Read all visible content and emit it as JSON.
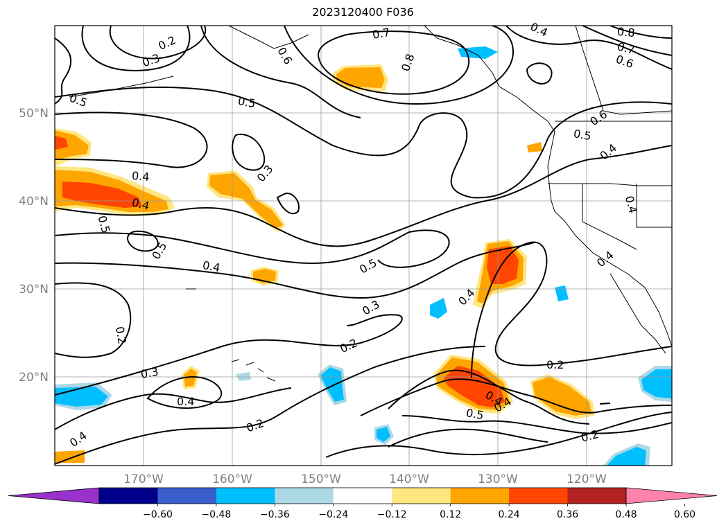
{
  "title": "2023120400 F036",
  "map": {
    "lon_labels": [
      "170°W",
      "160°W",
      "150°W",
      "140°W",
      "130°W",
      "120°W"
    ],
    "lat_labels": [
      "50°N",
      "40°N",
      "30°N",
      "20°N"
    ],
    "gridlines": true
  },
  "colorbar": {
    "ticks": [
      "−0.60",
      "−0.48",
      "−0.36",
      "−0.24",
      "−0.12",
      "0.12",
      "0.24",
      "0.36",
      "0.48",
      "0.60"
    ],
    "colors": [
      "#9932cc",
      "#00008b",
      "#3a5fcd",
      "#00bfff",
      "#add8e6",
      "#ffffff",
      "#ffe680",
      "#ffa500",
      "#ff4500",
      "#b22222",
      "#ff82ab"
    ],
    "extend": "both"
  },
  "contour_labels": [
    "0.2",
    "0.3",
    "0.5",
    "0.5",
    "0.7",
    "0.8",
    "0.6",
    "0.4",
    "0.8",
    "0.7",
    "0.6",
    "0.6",
    "0.5",
    "0.4",
    "0.4",
    "0.4",
    "0.5",
    "0.3",
    "0.4",
    "0.5",
    "0.4",
    "0.5",
    "0.3",
    "0.4",
    "0.2",
    "0.2",
    "0.2",
    "0.3",
    "0.4",
    "0.2",
    "0.4",
    "0.5",
    "0.4",
    "0.2",
    "0.4",
    "0.4"
  ]
}
